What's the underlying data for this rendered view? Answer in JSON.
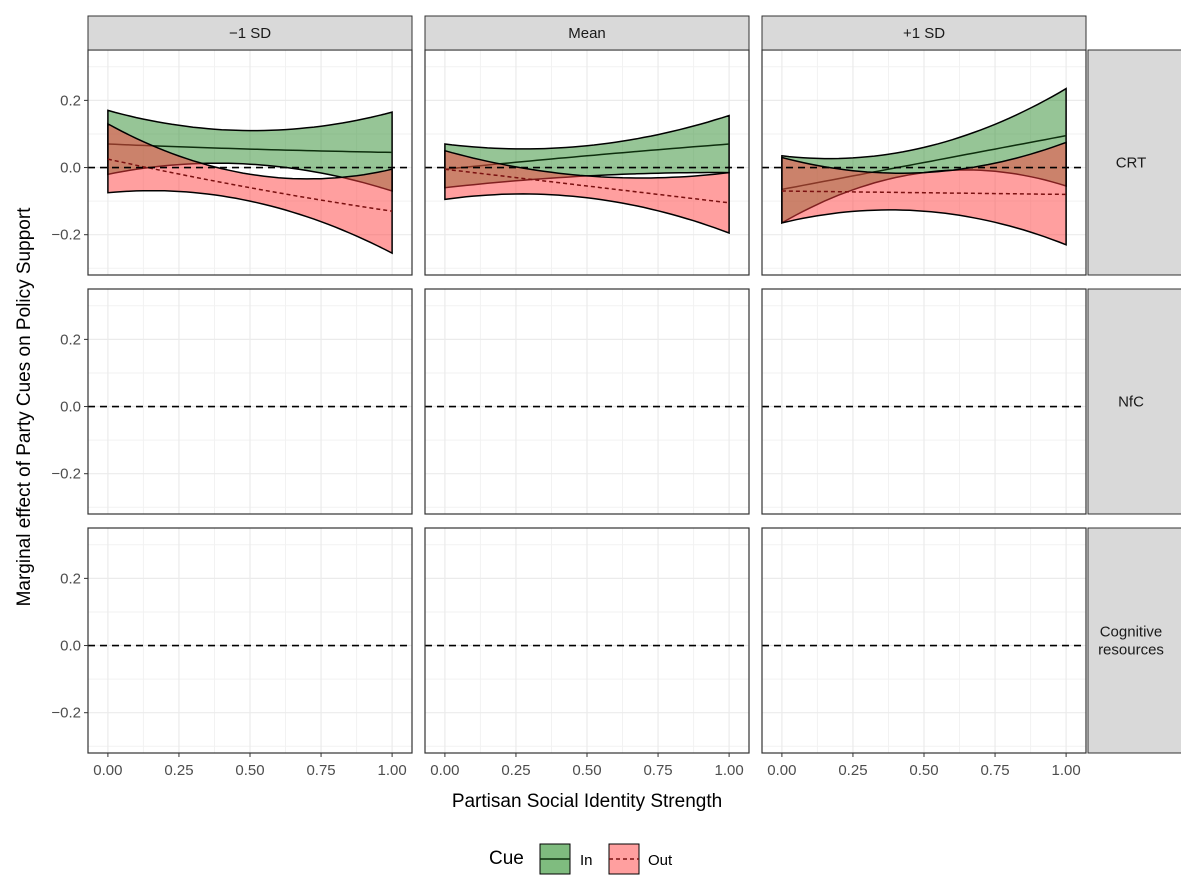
{
  "chart_data": {
    "type": "area",
    "xlabel": "Partisan Social Identity Strength",
    "ylabel": "Marginal effect of Party Cues on Policy Support",
    "xlim": [
      -0.07,
      1.07
    ],
    "ylim": [
      -0.32,
      0.35
    ],
    "x_ticks": [
      0,
      0.25,
      0.5,
      0.75,
      1
    ],
    "x_tick_labels": [
      "0.00",
      "0.25",
      "0.50",
      "0.75",
      "1.00"
    ],
    "y_ticks": [
      -0.2,
      0,
      0.2
    ],
    "y_tick_labels": [
      "−0.2",
      "0.0",
      "0.2"
    ],
    "column_facets": [
      "−1 SD",
      "Mean",
      "+1 SD"
    ],
    "row_facets": [
      [
        "CRT"
      ],
      [
        "NfC"
      ],
      [
        "Cognitive",
        "resources"
      ]
    ],
    "reference_line": 0,
    "grid": true,
    "legend": {
      "title": "Cue",
      "position": "bottom",
      "items": [
        {
          "label": "In",
          "fill": "#7fbc7f",
          "line": "solid"
        },
        {
          "label": "Out",
          "fill": "#ff7f7f",
          "line": "dashed"
        }
      ]
    },
    "colors": {
      "in_fill": "#2e8b2e",
      "out_fill": "#ff4040",
      "in_line": "#0d2e0d",
      "out_line": "#7a1010"
    },
    "x": [
      0,
      0.5,
      1
    ],
    "panels": [
      {
        "row": "CRT",
        "col": "−1 SD",
        "in": {
          "fit": [
            0.07,
            0.055,
            0.045
          ],
          "lower": [
            -0.02,
            0.01,
            -0.07
          ],
          "upper": [
            0.17,
            0.11,
            0.165
          ]
        },
        "out": {
          "fit": [
            0.025,
            -0.06,
            -0.13
          ],
          "lower": [
            -0.075,
            -0.1,
            -0.255
          ],
          "upper": [
            0.13,
            -0.02,
            -0.005
          ]
        }
      },
      {
        "row": "CRT",
        "col": "Mean",
        "in": {
          "fit": [
            -0.005,
            0.035,
            0.07
          ],
          "lower": [
            -0.06,
            -0.025,
            -0.015
          ],
          "upper": [
            0.07,
            0.065,
            0.155
          ]
        },
        "out": {
          "fit": [
            -0.005,
            -0.055,
            -0.105
          ],
          "lower": [
            -0.095,
            -0.09,
            -0.195
          ],
          "upper": [
            0.05,
            -0.025,
            -0.015
          ]
        }
      },
      {
        "row": "CRT",
        "col": "+1 SD",
        "in": {
          "fit": [
            -0.065,
            0.015,
            0.095
          ],
          "lower": [
            -0.165,
            -0.015,
            -0.055
          ],
          "upper": [
            0.035,
            0.06,
            0.235
          ]
        },
        "out": {
          "fit": [
            -0.07,
            -0.075,
            -0.08
          ],
          "lower": [
            -0.165,
            -0.13,
            -0.23
          ],
          "upper": [
            0.03,
            -0.015,
            0.075
          ]
        }
      }
    ]
  }
}
